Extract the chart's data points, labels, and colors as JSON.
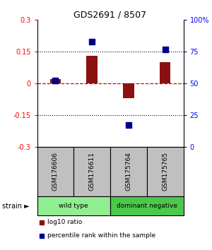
{
  "title": "GDS2691 / 8507",
  "samples": [
    "GSM176606",
    "GSM176611",
    "GSM175764",
    "GSM175765"
  ],
  "log10_ratio": [
    0.02,
    0.13,
    -0.07,
    0.1
  ],
  "percentile_rank": [
    52,
    83,
    17,
    77
  ],
  "groups": [
    {
      "label": "wild type",
      "color": "#90ee90",
      "start": 0,
      "end": 1
    },
    {
      "label": "dominant negative",
      "color": "#4cc94c",
      "start": 2,
      "end": 3
    }
  ],
  "ylim_left": [
    -0.3,
    0.3
  ],
  "ylim_right": [
    0,
    100
  ],
  "yticks_left": [
    -0.3,
    -0.15,
    0,
    0.15,
    0.3
  ],
  "yticks_right": [
    0,
    25,
    50,
    75,
    100
  ],
  "bar_color": "#8b1010",
  "dot_color": "#00008b",
  "hline_color": "#cc0000",
  "dot_size": 30,
  "bar_width": 0.3,
  "legend_bar_label": "log10 ratio",
  "legend_dot_label": "percentile rank within the sample",
  "sample_box_color": "#c0c0c0",
  "title_fontsize": 9,
  "tick_fontsize": 7,
  "label_fontsize": 6.5,
  "group_fontsize": 6.5,
  "legend_fontsize": 6.5
}
